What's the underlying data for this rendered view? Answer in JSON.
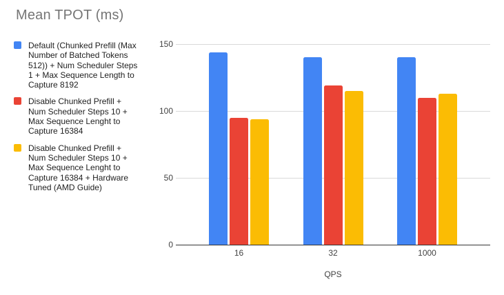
{
  "chart_data": {
    "type": "bar",
    "title": "Mean TPOT (ms)",
    "categories": [
      "16",
      "32",
      "1000"
    ],
    "series": [
      {
        "name": "Default (Chunked Prefill (Max Number of Batched Tokens 512)) + Num Scheduler Steps 1 + Max Sequence Length to Capture 8192",
        "color": "#4285f4",
        "values": [
          144,
          140,
          140
        ]
      },
      {
        "name": "Disable Chunked Prefill + Num Scheduler Steps 10 + Max Sequence Lenght to Capture 16384",
        "color": "#ea4335",
        "values": [
          95,
          119,
          110
        ]
      },
      {
        "name": "Disable Chunked Prefill + Num Scheduler Steps 10 + Max Sequence Lenght to Capture 16384 + Hardware Tuned (AMD Guide)",
        "color": "#fbbc04",
        "values": [
          94,
          115,
          113
        ]
      }
    ],
    "xlabel": "QPS",
    "ylabel": "",
    "ylim": [
      0,
      150
    ],
    "yticks": [
      0,
      50,
      100,
      150
    ],
    "grid": true,
    "legend_position": "left"
  },
  "legend": {
    "items": [
      {
        "label": "Default (Chunked Prefill (Max\nNumber of Batched Tokens\n512)) + Num Scheduler Steps\n1 + Max Sequence Length to\nCapture 8192"
      },
      {
        "label": "Disable Chunked Prefill +\nNum Scheduler Steps 10 +\nMax Sequence Lenght to\nCapture 16384"
      },
      {
        "label": "Disable Chunked Prefill +\nNum Scheduler Steps 10 +\nMax Sequence Lenght to\nCapture 16384 + Hardware\nTuned (AMD Guide)"
      }
    ]
  }
}
